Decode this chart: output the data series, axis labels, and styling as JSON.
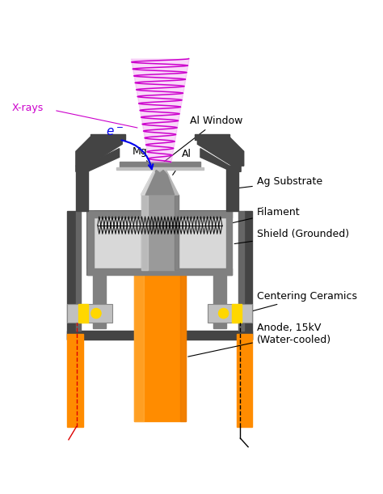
{
  "fig_width": 4.74,
  "fig_height": 6.11,
  "dpi": 100,
  "bg_color": "#ffffff",
  "colors": {
    "dark_gray": "#3a3a3a",
    "mid_gray": "#808080",
    "light_gray": "#c0c0c0",
    "lighter_gray": "#d8d8d8",
    "orange": "#FF8C00",
    "orange_light": "#FFB84D",
    "orange_dark": "#E07000",
    "black": "#000000",
    "magenta": "#CC00CC",
    "magenta_light": "#F0A0F0",
    "blue": "#0000EE",
    "red": "#DD0000",
    "yellow": "#FFD700",
    "silver": "#9a9a9a",
    "silver_light": "#c8c8c8",
    "housing": "#444444",
    "housing_inner": "#666666"
  },
  "labels": {
    "xrays": "X-rays",
    "al_window": "Al Window",
    "mg": "Mg",
    "al": "Al",
    "ag_substrate": "Ag Substrate",
    "filament": "Filament",
    "shield": "Shield (Grounded)",
    "centering": "Centering Ceramics",
    "anode": "Anode, 15kV\n(Water-cooled)"
  }
}
